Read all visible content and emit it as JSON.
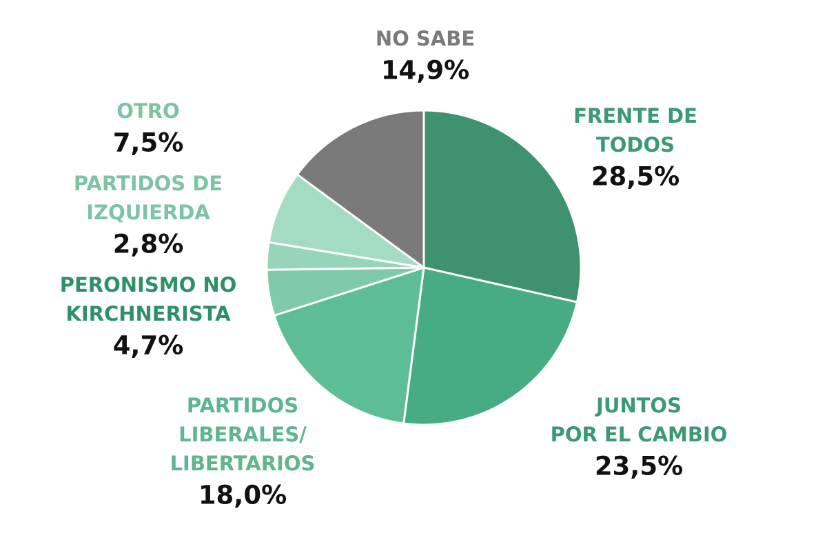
{
  "chart_data": {
    "type": "pie",
    "categories": [
      "FRENTE DE\nTODOS",
      "JUNTOS\nPOR EL CAMBIO",
      "PARTIDOS\nLIBERALES/\nLIBERTARIOS",
      "PERONISMO NO\nKIRCHNERISTA",
      "PARTIDOS DE\nIZQUIERDA",
      "OTRO",
      "NO SABE"
    ],
    "values": [
      28.5,
      23.5,
      18.0,
      4.7,
      2.8,
      7.5,
      14.9
    ],
    "value_labels": [
      "28,5%",
      "23,5%",
      "18,0%",
      "4,7%",
      "2,8%",
      "7,5%",
      "14,9%"
    ],
    "colors": [
      "#3f9270",
      "#47ab84",
      "#5dbd95",
      "#7fcaa9",
      "#97d5b9",
      "#a4dcc3",
      "#7a7a7a"
    ],
    "label_colors": [
      "#3b9a73",
      "#3b9a73",
      "#5fb590",
      "#2f9068",
      "#7cc4a3",
      "#7cc4a3",
      "#7a7a7a"
    ]
  }
}
